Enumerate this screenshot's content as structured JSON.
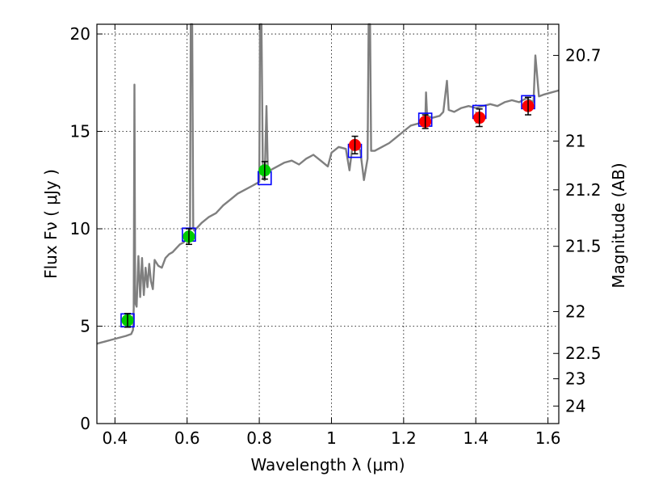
{
  "chart_data": {
    "type": "scatter",
    "xlabel": "Wavelength  λ (μm)",
    "ylabel": "Flux  Fν  ( μJy )",
    "y2label": "Magnitude (AB)",
    "xlim": [
      0.35,
      1.63
    ],
    "ylim": [
      0,
      20.5
    ],
    "grid": true,
    "x_ticks": [
      0.4,
      0.6,
      0.8,
      1.0,
      1.2,
      1.4,
      1.6
    ],
    "x_tick_labels": [
      "0.4",
      "0.6",
      "0.8",
      "1",
      "1.2",
      "1.4",
      "1.6"
    ],
    "y_ticks": [
      0,
      5,
      10,
      15,
      20
    ],
    "y_tick_labels": [
      "0",
      "5",
      "10",
      "15",
      "20"
    ],
    "y2_ticks": [
      {
        "label": "20.7",
        "flux": 18.9
      },
      {
        "label": "21",
        "flux": 14.5
      },
      {
        "label": "21.2",
        "flux": 12.0
      },
      {
        "label": "21.5",
        "flux": 9.1
      },
      {
        "label": "22",
        "flux": 5.75
      },
      {
        "label": "22.5",
        "flux": 3.6
      },
      {
        "label": "23",
        "flux": 2.3
      },
      {
        "label": "24",
        "flux": 0.9
      }
    ],
    "series": [
      {
        "kind": "line",
        "color": "#7f7f7f",
        "points": [
          [
            0.35,
            4.1
          ],
          [
            0.37,
            4.2
          ],
          [
            0.39,
            4.3
          ],
          [
            0.41,
            4.4
          ],
          [
            0.43,
            4.5
          ],
          [
            0.445,
            4.6
          ],
          [
            0.45,
            4.8
          ],
          [
            0.452,
            5.9
          ],
          [
            0.454,
            17.4
          ],
          [
            0.456,
            6.2
          ],
          [
            0.46,
            6.0
          ],
          [
            0.465,
            8.6
          ],
          [
            0.47,
            6.5
          ],
          [
            0.475,
            8.5
          ],
          [
            0.48,
            6.6
          ],
          [
            0.485,
            8.0
          ],
          [
            0.49,
            7.0
          ],
          [
            0.495,
            8.2
          ],
          [
            0.5,
            7.3
          ],
          [
            0.505,
            6.9
          ],
          [
            0.51,
            8.4
          ],
          [
            0.52,
            8.1
          ],
          [
            0.53,
            8.0
          ],
          [
            0.54,
            8.5
          ],
          [
            0.55,
            8.7
          ],
          [
            0.56,
            8.8
          ],
          [
            0.57,
            9.0
          ],
          [
            0.58,
            9.2
          ],
          [
            0.59,
            9.3
          ],
          [
            0.6,
            9.5
          ],
          [
            0.605,
            9.3
          ],
          [
            0.608,
            9.6
          ],
          [
            0.61,
            20.5
          ],
          [
            0.614,
            20.5
          ],
          [
            0.617,
            10.0
          ],
          [
            0.62,
            9.9
          ],
          [
            0.64,
            10.3
          ],
          [
            0.66,
            10.6
          ],
          [
            0.68,
            10.8
          ],
          [
            0.7,
            11.2
          ],
          [
            0.72,
            11.5
          ],
          [
            0.74,
            11.8
          ],
          [
            0.76,
            12.0
          ],
          [
            0.78,
            12.2
          ],
          [
            0.79,
            12.3
          ],
          [
            0.8,
            12.4
          ],
          [
            0.802,
            20.5
          ],
          [
            0.806,
            20.5
          ],
          [
            0.81,
            12.6
          ],
          [
            0.815,
            12.5
          ],
          [
            0.82,
            16.3
          ],
          [
            0.824,
            12.8
          ],
          [
            0.83,
            13.0
          ],
          [
            0.85,
            13.2
          ],
          [
            0.87,
            13.4
          ],
          [
            0.89,
            13.5
          ],
          [
            0.91,
            13.3
          ],
          [
            0.93,
            13.6
          ],
          [
            0.95,
            13.8
          ],
          [
            0.97,
            13.5
          ],
          [
            0.99,
            13.2
          ],
          [
            1.0,
            13.9
          ],
          [
            1.02,
            14.2
          ],
          [
            1.04,
            14.1
          ],
          [
            1.05,
            13.0
          ],
          [
            1.06,
            14.5
          ],
          [
            1.07,
            14.3
          ],
          [
            1.08,
            14.0
          ],
          [
            1.09,
            12.5
          ],
          [
            1.1,
            13.6
          ],
          [
            1.103,
            20.5
          ],
          [
            1.107,
            20.5
          ],
          [
            1.11,
            14.0
          ],
          [
            1.12,
            14.0
          ],
          [
            1.14,
            14.2
          ],
          [
            1.16,
            14.4
          ],
          [
            1.18,
            14.7
          ],
          [
            1.2,
            15.0
          ],
          [
            1.22,
            15.3
          ],
          [
            1.24,
            15.4
          ],
          [
            1.26,
            15.6
          ],
          [
            1.262,
            17.0
          ],
          [
            1.265,
            15.8
          ],
          [
            1.28,
            15.7
          ],
          [
            1.3,
            15.8
          ],
          [
            1.31,
            16.0
          ],
          [
            1.32,
            17.6
          ],
          [
            1.325,
            16.1
          ],
          [
            1.34,
            16.0
          ],
          [
            1.36,
            16.2
          ],
          [
            1.38,
            16.3
          ],
          [
            1.4,
            16.2
          ],
          [
            1.42,
            16.3
          ],
          [
            1.44,
            16.4
          ],
          [
            1.46,
            16.3
          ],
          [
            1.48,
            16.5
          ],
          [
            1.5,
            16.6
          ],
          [
            1.52,
            16.5
          ],
          [
            1.54,
            16.7
          ],
          [
            1.55,
            16.6
          ],
          [
            1.56,
            16.5
          ],
          [
            1.565,
            18.9
          ],
          [
            1.575,
            16.8
          ],
          [
            1.59,
            16.9
          ],
          [
            1.61,
            17.0
          ],
          [
            1.63,
            17.1
          ]
        ]
      },
      {
        "kind": "model-points",
        "marker": "open-square",
        "color": "#0000ff",
        "points": [
          [
            0.435,
            5.3
          ],
          [
            0.605,
            9.7
          ],
          [
            0.815,
            12.6
          ],
          [
            1.065,
            14.0
          ],
          [
            1.26,
            15.6
          ],
          [
            1.41,
            16.0
          ],
          [
            1.545,
            16.5
          ]
        ]
      },
      {
        "kind": "observed-points",
        "marker": "filled-circle",
        "color": "#00cc00",
        "points": [
          {
            "x": 0.435,
            "y": 5.3,
            "err": 0.35
          },
          {
            "x": 0.605,
            "y": 9.6,
            "err": 0.4
          },
          {
            "x": 0.815,
            "y": 13.0,
            "err": 0.45
          }
        ]
      },
      {
        "kind": "observed-points",
        "marker": "filled-circle",
        "color": "#ff0000",
        "points": [
          {
            "x": 1.065,
            "y": 14.3,
            "err": 0.45
          },
          {
            "x": 1.26,
            "y": 15.5,
            "err": 0.35
          },
          {
            "x": 1.41,
            "y": 15.7,
            "err": 0.45
          },
          {
            "x": 1.545,
            "y": 16.3,
            "err": 0.45
          }
        ]
      }
    ]
  }
}
